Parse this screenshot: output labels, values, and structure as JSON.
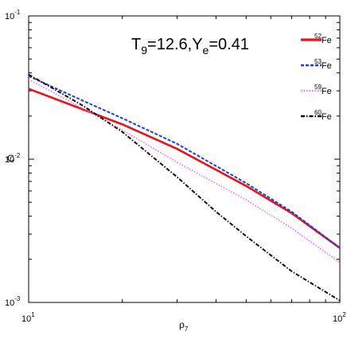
{
  "chart_data": {
    "type": "line",
    "xscale": "log",
    "yscale": "log",
    "xlim": [
      10,
      100
    ],
    "ylim": [
      0.001,
      0.1
    ],
    "xlabel": {
      "base": "ρ",
      "sub": "7"
    },
    "ylabel": "C",
    "x_ticks": [
      {
        "base": "10",
        "exp": "1",
        "value": 10
      },
      {
        "base": "10",
        "exp": "2",
        "value": 100
      }
    ],
    "y_ticks": [
      {
        "base": "10",
        "exp": "-3",
        "value": 0.001
      },
      {
        "base": "10",
        "exp": "-2",
        "value": 0.01
      },
      {
        "base": "10",
        "exp": "-1",
        "value": 0.1
      }
    ],
    "annotation": {
      "t_base": "T",
      "t_sub": "9",
      "t_val": "=12.6,",
      "y_base": "Y",
      "y_sub": "e",
      "y_val": "=0.41"
    },
    "legend_position": "top-right",
    "series": [
      {
        "name": "52Fe",
        "sup": "52",
        "base": "Fe",
        "color": "#e8141c",
        "style": "solid",
        "width": 2.6,
        "x": [
          10,
          20,
          30,
          50,
          70,
          100
        ],
        "y": [
          0.031,
          0.0175,
          0.0118,
          0.0065,
          0.0042,
          0.0024
        ]
      },
      {
        "name": "53Fe",
        "sup": "53",
        "base": "Fe",
        "color": "#1f3fd6",
        "style": "dashed",
        "width": 2,
        "x": [
          10,
          15,
          20,
          30,
          50,
          70,
          100
        ],
        "y": [
          0.038,
          0.0255,
          0.0193,
          0.0128,
          0.0068,
          0.0043,
          0.0024
        ]
      },
      {
        "name": "59Fe",
        "sup": "59",
        "base": "Fe",
        "color": "#f070e6",
        "style": "dotted",
        "width": 1.6,
        "x": [
          10,
          15,
          20,
          30,
          50,
          70,
          100
        ],
        "y": [
          0.036,
          0.0225,
          0.016,
          0.0095,
          0.0052,
          0.0033,
          0.0019
        ]
      },
      {
        "name": "60Fe",
        "sup": "60",
        "base": "Fe",
        "color": "#111111",
        "style": "dashdot",
        "width": 2,
        "x": [
          10,
          15,
          20,
          30,
          40,
          50,
          70,
          100
        ],
        "y": [
          0.039,
          0.0235,
          0.0155,
          0.0075,
          0.0043,
          0.0029,
          0.00165,
          0.00103
        ]
      }
    ]
  }
}
